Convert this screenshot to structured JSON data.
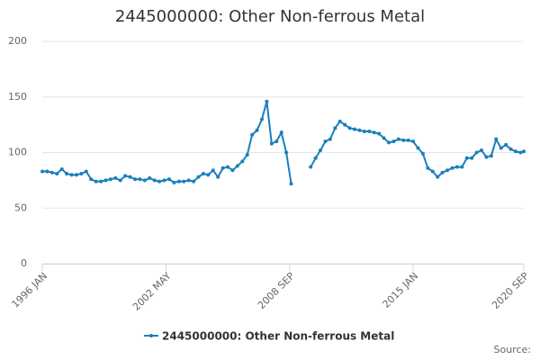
{
  "chart_data": {
    "type": "line",
    "title": "2445000000: Other Non-ferrous Metal",
    "source": "Source:",
    "x": [
      1996,
      1996.25,
      1996.5,
      1996.75,
      1997,
      1997.25,
      1997.5,
      1997.75,
      1998,
      1998.25,
      1998.5,
      1998.75,
      1999,
      1999.25,
      1999.5,
      1999.75,
      2000,
      2000.25,
      2000.5,
      2000.75,
      2001,
      2001.25,
      2001.5,
      2001.75,
      2002,
      2002.25,
      2002.5,
      2002.75,
      2003,
      2003.25,
      2003.5,
      2003.75,
      2004,
      2004.25,
      2004.5,
      2004.75,
      2005,
      2005.25,
      2005.5,
      2005.75,
      2006,
      2006.25,
      2006.5,
      2006.75,
      2007,
      2007.25,
      2007.5,
      2007.75,
      2008,
      2008.25,
      2008.5,
      2008.75,
      2009,
      2009.25,
      2009.5,
      2009.75,
      2010,
      2010.25,
      2010.5,
      2010.75,
      2011,
      2011.25,
      2011.5,
      2011.75,
      2012,
      2012.25,
      2012.5,
      2012.75,
      2013,
      2013.25,
      2013.5,
      2013.75,
      2014,
      2014.25,
      2014.5,
      2014.75,
      2015,
      2015.25,
      2015.5,
      2015.75,
      2016,
      2016.25,
      2016.5,
      2016.75,
      2017,
      2017.25,
      2017.5,
      2017.75,
      2018,
      2018.25,
      2018.5,
      2018.75,
      2019,
      2019.25,
      2019.5,
      2019.75,
      2020,
      2020.25,
      2020.5,
      2020.667
    ],
    "series": [
      {
        "name": "2445000000: Other Non-ferrous Metal",
        "color": "#1a7fbd",
        "values": [
          83,
          83,
          82,
          81,
          85,
          81,
          80,
          80,
          81,
          83,
          76,
          74,
          74,
          75,
          76,
          77,
          75,
          79,
          78,
          76,
          76,
          75,
          77,
          75,
          74,
          75,
          76,
          73,
          74,
          74,
          75,
          74,
          78,
          81,
          80,
          84,
          78,
          86,
          87,
          84,
          88,
          92,
          98,
          116,
          120,
          130,
          146,
          108,
          110,
          118,
          100,
          72,
          null,
          null,
          null,
          87,
          95,
          102,
          110,
          112,
          122,
          128,
          125,
          122,
          121,
          120,
          119,
          119,
          118,
          117,
          113,
          109,
          110,
          112,
          111,
          111,
          110,
          104,
          99,
          86,
          83,
          78,
          82,
          84,
          86,
          87,
          87,
          95,
          95,
          100,
          102,
          96,
          97,
          112,
          104,
          107,
          103,
          101,
          100,
          101
        ]
      }
    ],
    "xlim": [
      1996,
      2020.667
    ],
    "xticks": [
      {
        "value": 1996,
        "label": "1996 JAN"
      },
      {
        "value": 2002.333,
        "label": "2002 MAY"
      },
      {
        "value": 2008.667,
        "label": "2008 SEP"
      },
      {
        "value": 2015,
        "label": "2015 JAN"
      },
      {
        "value": 2020.667,
        "label": "2020 SEP"
      }
    ],
    "ylim": [
      0,
      200
    ],
    "yticks": [
      0,
      50,
      100,
      150,
      200
    ],
    "grid": true
  }
}
